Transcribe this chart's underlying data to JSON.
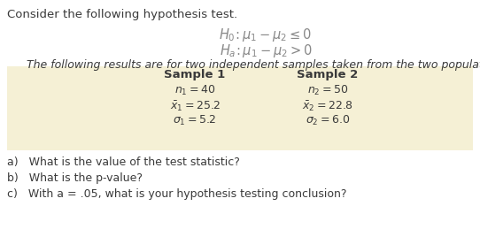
{
  "title_text": "Consider the following hypothesis test.",
  "h0_text": "$H_0\\!: \\mu_1 - \\mu_2 \\leq 0$",
  "ha_text": "$H_a\\!: \\mu_1 - \\mu_2 > 0$",
  "description": "The following results are for two independent samples taken from the two populations.",
  "sample1_header": "Sample 1",
  "sample2_header": "Sample 2",
  "sample1_lines": [
    "$n_1 = 40$",
    "$\\bar{x}_1 = 25.2$",
    "$\\sigma_1 = 5.2$"
  ],
  "sample2_lines": [
    "$n_2 = 50$",
    "$\\bar{x}_2 = 22.8$",
    "$\\sigma_2 = 6.0$"
  ],
  "questions": [
    "a)   What is the value of the test statistic?",
    "b)   What is the p-value?",
    "c)   With a = .05, what is your hypothesis testing conclusion?"
  ],
  "box_color": "#f5f0d5",
  "background_color": "#ffffff",
  "text_color": "#3a3a3a",
  "hyp_color": "#888888",
  "title_fontsize": 9.5,
  "hypothesis_fontsize": 10.5,
  "desc_fontsize": 9.0,
  "header_fontsize": 9.5,
  "data_fontsize": 9.0,
  "question_fontsize": 9.0
}
